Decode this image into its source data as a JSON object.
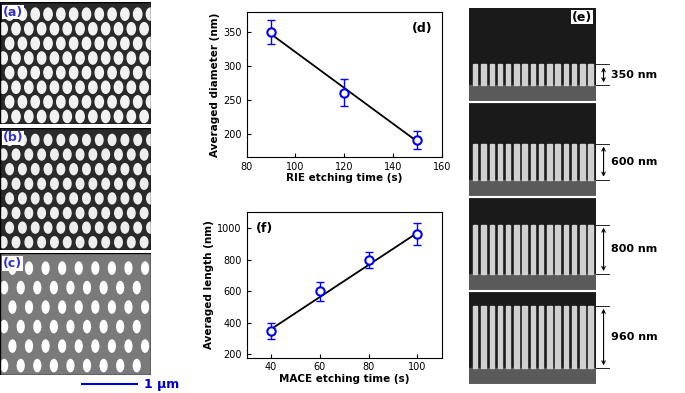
{
  "chart_data": [
    {
      "type": "scatter",
      "annotations": [
        "(d)"
      ],
      "x_label": "RIE etching time (s)",
      "y_label": "Averaged diameter (nm)",
      "xlim": [
        80,
        160
      ],
      "xticks": [
        80,
        100,
        120,
        140,
        160
      ],
      "ylim": [
        165,
        380
      ],
      "yticks": [
        200,
        250,
        300,
        350
      ],
      "series": [
        {
          "type": "scatter",
          "color": "#0000ff",
          "marker": "o",
          "x": [
            90,
            120,
            150
          ],
          "values": [
            350,
            260,
            190
          ],
          "errors": [
            18,
            20,
            13
          ]
        },
        {
          "type": "line",
          "color": "#000000",
          "line_style": "solid",
          "x": [
            90,
            150
          ],
          "values": [
            347,
            188
          ]
        }
      ]
    },
    {
      "type": "scatter",
      "annotations": [
        "(f)"
      ],
      "x_label": "MACE etching time (s)",
      "y_label": "Averaged length (nm)",
      "xlim": [
        30,
        110
      ],
      "xticks": [
        40,
        60,
        80,
        100
      ],
      "ylim": [
        180,
        1100
      ],
      "yticks": [
        200,
        400,
        600,
        800,
        1000
      ],
      "series": [
        {
          "type": "scatter",
          "color": "#0000ff",
          "marker": "o",
          "x": [
            40,
            60,
            80,
            100
          ],
          "values": [
            350,
            600,
            800,
            960
          ],
          "errors": [
            50,
            60,
            50,
            70
          ]
        },
        {
          "type": "line",
          "color": "#000000",
          "line_style": "solid",
          "x": [
            40,
            100
          ],
          "values": [
            360,
            970
          ]
        }
      ]
    }
  ],
  "images": [
    {
      "label": "(a)"
    },
    {
      "label": "(b)"
    },
    {
      "label": "(c)",
      "scale_bar": "1 µm"
    },
    {
      "label": "(e)",
      "measurements": [
        "350 nm",
        "600 nm",
        "800 nm",
        "960 nm"
      ]
    }
  ]
}
